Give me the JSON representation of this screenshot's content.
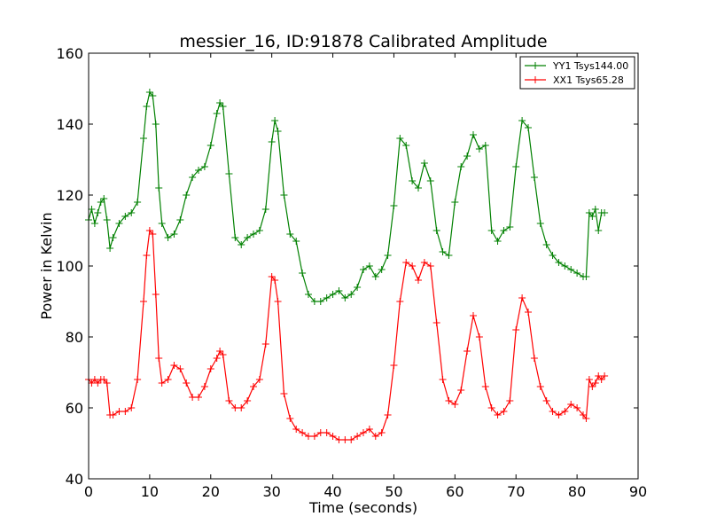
{
  "chart_data": {
    "type": "line",
    "title": "messier_16, ID:91878 Calibrated Amplitude",
    "xlabel": "Time (seconds)",
    "ylabel": "Power in Kelvin",
    "xlim": [
      0,
      90
    ],
    "ylim": [
      40,
      160
    ],
    "xticks": [
      0,
      10,
      20,
      30,
      40,
      50,
      60,
      70,
      80,
      90
    ],
    "yticks": [
      40,
      60,
      80,
      100,
      120,
      140,
      160
    ],
    "grid": false,
    "legend_position": "top-right",
    "marker": "plus",
    "series": [
      {
        "name": "YY1 Tsys144.00",
        "color": "#008000",
        "x": [
          0.0,
          0.5,
          1.0,
          1.5,
          2.0,
          2.5,
          3.0,
          3.5,
          4.0,
          5.0,
          6.0,
          7.0,
          8.0,
          9.0,
          9.5,
          10.0,
          10.5,
          11.0,
          11.5,
          12.0,
          13.0,
          14.0,
          15.0,
          16.0,
          17.0,
          18.0,
          19.0,
          20.0,
          21.0,
          21.5,
          22.0,
          23.0,
          24.0,
          25.0,
          26.0,
          27.0,
          28.0,
          29.0,
          30.0,
          30.5,
          31.0,
          32.0,
          33.0,
          34.0,
          35.0,
          36.0,
          37.0,
          38.0,
          39.0,
          40.0,
          41.0,
          42.0,
          43.0,
          44.0,
          45.0,
          46.0,
          47.0,
          48.0,
          49.0,
          50.0,
          51.0,
          52.0,
          53.0,
          54.0,
          55.0,
          56.0,
          57.0,
          58.0,
          59.0,
          60.0,
          61.0,
          62.0,
          63.0,
          64.0,
          65.0,
          66.0,
          67.0,
          68.0,
          69.0,
          70.0,
          71.0,
          72.0,
          73.0,
          74.0,
          75.0,
          76.0,
          77.0,
          78.0,
          79.0,
          80.0,
          81.0,
          81.5,
          82.0,
          82.5,
          83.0,
          83.5,
          84.0,
          84.5
        ],
        "values": [
          113,
          116,
          112,
          115,
          118,
          119,
          113,
          105,
          108,
          112,
          114,
          115,
          118,
          136,
          145,
          149,
          148,
          140,
          122,
          112,
          108,
          109,
          113,
          120,
          125,
          127,
          128,
          134,
          143,
          146,
          145,
          126,
          108,
          106,
          108,
          109,
          110,
          116,
          135,
          141,
          138,
          120,
          109,
          107,
          98,
          92,
          90,
          90,
          91,
          92,
          93,
          91,
          92,
          94,
          99,
          100,
          97,
          99,
          103,
          117,
          136,
          134,
          124,
          122,
          129,
          124,
          110,
          104,
          103,
          118,
          128,
          131,
          137,
          133,
          134,
          110,
          107,
          110,
          111,
          128,
          141,
          139,
          125,
          112,
          106,
          103,
          101,
          100,
          99,
          98,
          97,
          97,
          115,
          114,
          116,
          110,
          115,
          115
        ]
      },
      {
        "name": "XX1 Tsys65.28",
        "color": "#ff0000",
        "x": [
          0.0,
          0.5,
          1.0,
          1.5,
          2.0,
          2.5,
          3.0,
          3.5,
          4.0,
          5.0,
          6.0,
          7.0,
          8.0,
          9.0,
          9.5,
          10.0,
          10.5,
          11.0,
          11.5,
          12.0,
          13.0,
          14.0,
          15.0,
          16.0,
          17.0,
          18.0,
          19.0,
          20.0,
          21.0,
          21.5,
          22.0,
          23.0,
          24.0,
          25.0,
          26.0,
          27.0,
          28.0,
          29.0,
          30.0,
          30.5,
          31.0,
          32.0,
          33.0,
          34.0,
          35.0,
          36.0,
          37.0,
          38.0,
          39.0,
          40.0,
          41.0,
          42.0,
          43.0,
          44.0,
          45.0,
          46.0,
          47.0,
          48.0,
          49.0,
          50.0,
          51.0,
          52.0,
          53.0,
          54.0,
          55.0,
          56.0,
          57.0,
          58.0,
          59.0,
          60.0,
          61.0,
          62.0,
          63.0,
          64.0,
          65.0,
          66.0,
          67.0,
          68.0,
          69.0,
          70.0,
          71.0,
          72.0,
          73.0,
          74.0,
          75.0,
          76.0,
          77.0,
          78.0,
          79.0,
          80.0,
          81.0,
          81.5,
          82.0,
          82.5,
          83.0,
          83.5,
          84.0,
          84.5
        ],
        "values": [
          68,
          67,
          68,
          67,
          68,
          68,
          67,
          58,
          58,
          59,
          59,
          60,
          68,
          90,
          103,
          110,
          109,
          92,
          74,
          67,
          68,
          72,
          71,
          67,
          63,
          63,
          66,
          71,
          74,
          76,
          75,
          62,
          60,
          60,
          62,
          66,
          68,
          78,
          97,
          96,
          90,
          64,
          57,
          54,
          53,
          52,
          52,
          53,
          53,
          52,
          51,
          51,
          51,
          52,
          53,
          54,
          52,
          53,
          58,
          72,
          90,
          101,
          100,
          96,
          101,
          100,
          84,
          68,
          62,
          61,
          65,
          76,
          86,
          80,
          66,
          60,
          58,
          59,
          62,
          82,
          91,
          87,
          74,
          66,
          62,
          59,
          58,
          59,
          61,
          60,
          58,
          57,
          68,
          66,
          67,
          69,
          68,
          69
        ]
      }
    ]
  }
}
